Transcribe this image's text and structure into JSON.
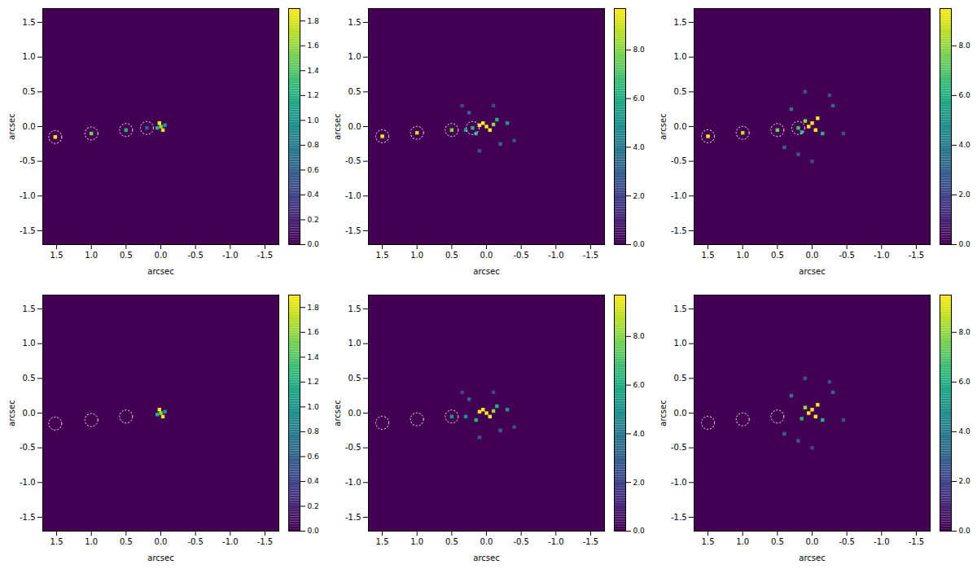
{
  "chart_data": [
    {
      "type": "heatmap",
      "x_label": "arcsec",
      "y_label": "arcsec",
      "xlim": [
        1.7,
        -1.7
      ],
      "ylim": [
        -1.7,
        1.7
      ],
      "xticks": [
        1.5,
        {
          "value": 1,
          "label": "1.0"
        },
        0.5,
        {
          "value": 0,
          "label": "0.0"
        },
        -0.5,
        {
          "value": -1,
          "label": "-1.0"
        },
        -1.5
      ],
      "yticks": [
        -1.5,
        {
          "value": -1,
          "label": "-1.0"
        },
        -0.5,
        {
          "value": 0,
          "label": "0.0"
        },
        0.5,
        {
          "value": 1,
          "label": "1.0"
        },
        1.5
      ],
      "color": "viridis",
      "colorbar_lim": [
        0,
        1.9
      ],
      "colorbar_ticks": [
        {
          "value": 0,
          "label": "0.0"
        },
        0.2,
        0.4,
        0.6,
        0.8,
        {
          "value": 1,
          "label": "1.0"
        },
        1.2,
        1.4,
        1.6,
        1.8
      ],
      "cells": {
        "x": [
          1.52,
          1.0,
          0.5,
          0.2,
          0.02,
          0.0,
          -0.03,
          0.05,
          -0.06
        ],
        "y": [
          -0.15,
          -0.1,
          -0.05,
          -0.02,
          0.05,
          0.0,
          -0.05,
          -0.02,
          0.02
        ],
        "values": [
          1.9,
          1.5,
          1.2,
          0.6,
          1.9,
          1.6,
          1.8,
          1.2,
          1.0
        ]
      },
      "markers": {
        "x": [
          1.52,
          1.0,
          0.5,
          0.2
        ],
        "y": [
          -0.15,
          -0.1,
          -0.05,
          -0.02
        ]
      },
      "marker": "circle",
      "line_style": "dotted"
    },
    {
      "type": "heatmap",
      "x_label": "arcsec",
      "y_label": "arcsec",
      "xlim": [
        1.7,
        -1.7
      ],
      "ylim": [
        -1.7,
        1.7
      ],
      "xticks": [
        1.5,
        {
          "value": 1,
          "label": "1.0"
        },
        0.5,
        {
          "value": 0,
          "label": "0.0"
        },
        -0.5,
        {
          "value": -1,
          "label": "-1.0"
        },
        -1.5
      ],
      "yticks": [
        -1.5,
        {
          "value": -1,
          "label": "-1.0"
        },
        -0.5,
        {
          "value": 0,
          "label": "0.0"
        },
        0.5,
        {
          "value": 1,
          "label": "1.0"
        },
        1.5
      ],
      "color": "viridis",
      "colorbar_lim": [
        0,
        9.7
      ],
      "colorbar_ticks": [
        {
          "value": 0,
          "label": "0.0"
        },
        {
          "value": 2,
          "label": "2.0"
        },
        {
          "value": 4,
          "label": "4.0"
        },
        {
          "value": 6,
          "label": "6.0"
        },
        {
          "value": 8,
          "label": "8.0"
        }
      ],
      "cells": {
        "x": [
          1.5,
          1.0,
          0.5,
          0.2,
          0.0,
          0.05,
          -0.05,
          0.1,
          -0.1,
          0.3,
          -0.3,
          0.15,
          -0.15,
          0.25,
          -0.2,
          0.35,
          -0.4,
          0.1,
          -0.1
        ],
        "y": [
          -0.14,
          -0.09,
          -0.05,
          -0.02,
          0.0,
          0.05,
          -0.05,
          0.02,
          0.03,
          -0.05,
          0.05,
          -0.1,
          0.1,
          0.2,
          -0.25,
          0.3,
          -0.2,
          -0.35,
          0.3
        ],
        "values": [
          9.7,
          9.0,
          8.0,
          6.0,
          9.7,
          9.7,
          9.7,
          9.7,
          8.0,
          5.0,
          5.0,
          6.0,
          6.0,
          3.0,
          3.0,
          2.0,
          2.5,
          2.5,
          2.0
        ]
      },
      "markers": {
        "x": [
          1.5,
          1.0,
          0.5,
          0.2
        ],
        "y": [
          -0.14,
          -0.09,
          -0.05,
          -0.02
        ]
      },
      "marker": "circle",
      "line_style": "dotted"
    },
    {
      "type": "heatmap",
      "x_label": "arcsec",
      "y_label": "arcsec",
      "xlim": [
        1.7,
        -1.7
      ],
      "ylim": [
        -1.7,
        1.7
      ],
      "xticks": [
        1.5,
        {
          "value": 1,
          "label": "1.0"
        },
        0.5,
        {
          "value": 0,
          "label": "0.0"
        },
        -0.5,
        {
          "value": -1,
          "label": "-1.0"
        },
        -1.5
      ],
      "yticks": [
        -1.5,
        {
          "value": -1,
          "label": "-1.0"
        },
        -0.5,
        {
          "value": 0,
          "label": "0.0"
        },
        0.5,
        {
          "value": 1,
          "label": "1.0"
        },
        1.5
      ],
      "color": "viridis",
      "colorbar_lim": [
        0,
        9.5
      ],
      "colorbar_ticks": [
        {
          "value": 0,
          "label": "0.0"
        },
        {
          "value": 2,
          "label": "2.0"
        },
        {
          "value": 4,
          "label": "4.0"
        },
        {
          "value": 6,
          "label": "6.0"
        },
        {
          "value": 8,
          "label": "8.0"
        }
      ],
      "cells": {
        "x": [
          1.5,
          1.0,
          0.5,
          0.2,
          0.05,
          0.0,
          -0.05,
          -0.08,
          0.1,
          0.15,
          -0.15,
          0.3,
          -0.3,
          0.4,
          -0.45,
          0.2,
          -0.25,
          0.0,
          0.1
        ],
        "y": [
          -0.14,
          -0.09,
          -0.05,
          -0.02,
          0.0,
          0.05,
          -0.05,
          0.12,
          0.08,
          -0.08,
          -0.1,
          0.25,
          0.3,
          -0.3,
          -0.1,
          -0.4,
          0.45,
          -0.5,
          0.5
        ],
        "values": [
          9.5,
          8.5,
          7.5,
          6.5,
          9.5,
          9.5,
          9.5,
          9.5,
          8.0,
          6.0,
          6.0,
          3.5,
          3.0,
          3.0,
          2.5,
          2.5,
          2.0,
          2.0,
          2.5
        ]
      },
      "markers": {
        "x": [
          1.5,
          1.0,
          0.5,
          0.2
        ],
        "y": [
          -0.14,
          -0.09,
          -0.05,
          -0.02
        ]
      },
      "marker": "circle",
      "line_style": "dotted"
    },
    {
      "type": "heatmap",
      "x_label": "arcsec",
      "y_label": "arcsec",
      "xlim": [
        1.7,
        -1.7
      ],
      "ylim": [
        -1.7,
        1.7
      ],
      "xticks": [
        1.5,
        {
          "value": 1,
          "label": "1.0"
        },
        0.5,
        {
          "value": 0,
          "label": "0.0"
        },
        -0.5,
        {
          "value": -1,
          "label": "-1.0"
        },
        -1.5
      ],
      "yticks": [
        -1.5,
        {
          "value": -1,
          "label": "-1.0"
        },
        -0.5,
        {
          "value": 0,
          "label": "0.0"
        },
        0.5,
        {
          "value": 1,
          "label": "1.0"
        },
        1.5
      ],
      "color": "viridis",
      "colorbar_lim": [
        0,
        1.9
      ],
      "colorbar_ticks": [
        {
          "value": 0,
          "label": "0.0"
        },
        0.2,
        0.4,
        0.6,
        0.8,
        {
          "value": 1,
          "label": "1.0"
        },
        1.2,
        1.4,
        1.6,
        1.8
      ],
      "cells": {
        "x": [
          0.02,
          0.0,
          -0.03,
          0.05,
          -0.06
        ],
        "y": [
          0.05,
          0.0,
          -0.05,
          -0.02,
          0.02
        ],
        "values": [
          1.9,
          1.6,
          1.8,
          1.2,
          1.0
        ]
      },
      "markers": {
        "x": [
          1.52,
          1.0,
          0.5
        ],
        "y": [
          -0.15,
          -0.1,
          -0.05
        ]
      },
      "marker": "circle",
      "line_style": "dotted"
    },
    {
      "type": "heatmap",
      "x_label": "arcsec",
      "y_label": "arcsec",
      "xlim": [
        1.7,
        -1.7
      ],
      "ylim": [
        -1.7,
        1.7
      ],
      "xticks": [
        1.5,
        {
          "value": 1,
          "label": "1.0"
        },
        0.5,
        {
          "value": 0,
          "label": "0.0"
        },
        -0.5,
        {
          "value": -1,
          "label": "-1.0"
        },
        -1.5
      ],
      "yticks": [
        -1.5,
        {
          "value": -1,
          "label": "-1.0"
        },
        -0.5,
        {
          "value": 0,
          "label": "0.0"
        },
        0.5,
        {
          "value": 1,
          "label": "1.0"
        },
        1.5
      ],
      "color": "viridis",
      "colorbar_lim": [
        0,
        9.7
      ],
      "colorbar_ticks": [
        {
          "value": 0,
          "label": "0.0"
        },
        {
          "value": 2,
          "label": "2.0"
        },
        {
          "value": 4,
          "label": "4.0"
        },
        {
          "value": 6,
          "label": "6.0"
        },
        {
          "value": 8,
          "label": "8.0"
        }
      ],
      "cells": {
        "x": [
          0.5,
          0.0,
          0.05,
          -0.05,
          0.1,
          -0.1,
          0.3,
          -0.3,
          0.15,
          -0.15,
          0.25,
          -0.2,
          0.35,
          -0.4,
          0.1,
          -0.1
        ],
        "y": [
          -0.05,
          0.0,
          0.05,
          -0.05,
          0.02,
          0.03,
          -0.05,
          0.05,
          -0.1,
          0.1,
          0.2,
          -0.25,
          0.3,
          -0.2,
          -0.35,
          0.3
        ],
        "values": [
          5.0,
          9.7,
          9.7,
          9.7,
          9.7,
          8.0,
          5.0,
          5.0,
          6.0,
          6.0,
          3.0,
          3.0,
          2.0,
          2.5,
          2.5,
          2.0
        ]
      },
      "markers": {
        "x": [
          1.5,
          1.0,
          0.5
        ],
        "y": [
          -0.14,
          -0.09,
          -0.05
        ]
      },
      "marker": "circle",
      "line_style": "dotted"
    },
    {
      "type": "heatmap",
      "x_label": "arcsec",
      "y_label": "arcsec",
      "xlim": [
        1.7,
        -1.7
      ],
      "ylim": [
        -1.7,
        1.7
      ],
      "xticks": [
        1.5,
        {
          "value": 1,
          "label": "1.0"
        },
        0.5,
        {
          "value": 0,
          "label": "0.0"
        },
        -0.5,
        {
          "value": -1,
          "label": "-1.0"
        },
        -1.5
      ],
      "yticks": [
        -1.5,
        {
          "value": -1,
          "label": "-1.0"
        },
        -0.5,
        {
          "value": 0,
          "label": "0.0"
        },
        0.5,
        {
          "value": 1,
          "label": "1.0"
        },
        1.5
      ],
      "color": "viridis",
      "colorbar_lim": [
        0,
        9.5
      ],
      "colorbar_ticks": [
        {
          "value": 0,
          "label": "0.0"
        },
        {
          "value": 2,
          "label": "2.0"
        },
        {
          "value": 4,
          "label": "4.0"
        },
        {
          "value": 6,
          "label": "6.0"
        },
        {
          "value": 8,
          "label": "8.0"
        }
      ],
      "cells": {
        "x": [
          0.05,
          0.0,
          -0.05,
          -0.08,
          0.1,
          0.15,
          -0.15,
          0.3,
          -0.3,
          0.4,
          -0.45,
          0.2,
          -0.25,
          0.0,
          0.1
        ],
        "y": [
          0.0,
          0.05,
          -0.05,
          0.12,
          0.08,
          -0.08,
          -0.1,
          0.25,
          0.3,
          -0.3,
          -0.1,
          -0.4,
          0.45,
          -0.5,
          0.5
        ],
        "values": [
          9.5,
          9.5,
          9.5,
          9.5,
          8.0,
          6.0,
          6.0,
          3.5,
          3.0,
          3.0,
          2.5,
          2.5,
          2.0,
          2.0,
          2.5
        ]
      },
      "markers": {
        "x": [
          1.5,
          1.0,
          0.5
        ],
        "y": [
          -0.14,
          -0.09,
          -0.05
        ]
      },
      "marker": "circle",
      "line_style": "dotted"
    }
  ]
}
